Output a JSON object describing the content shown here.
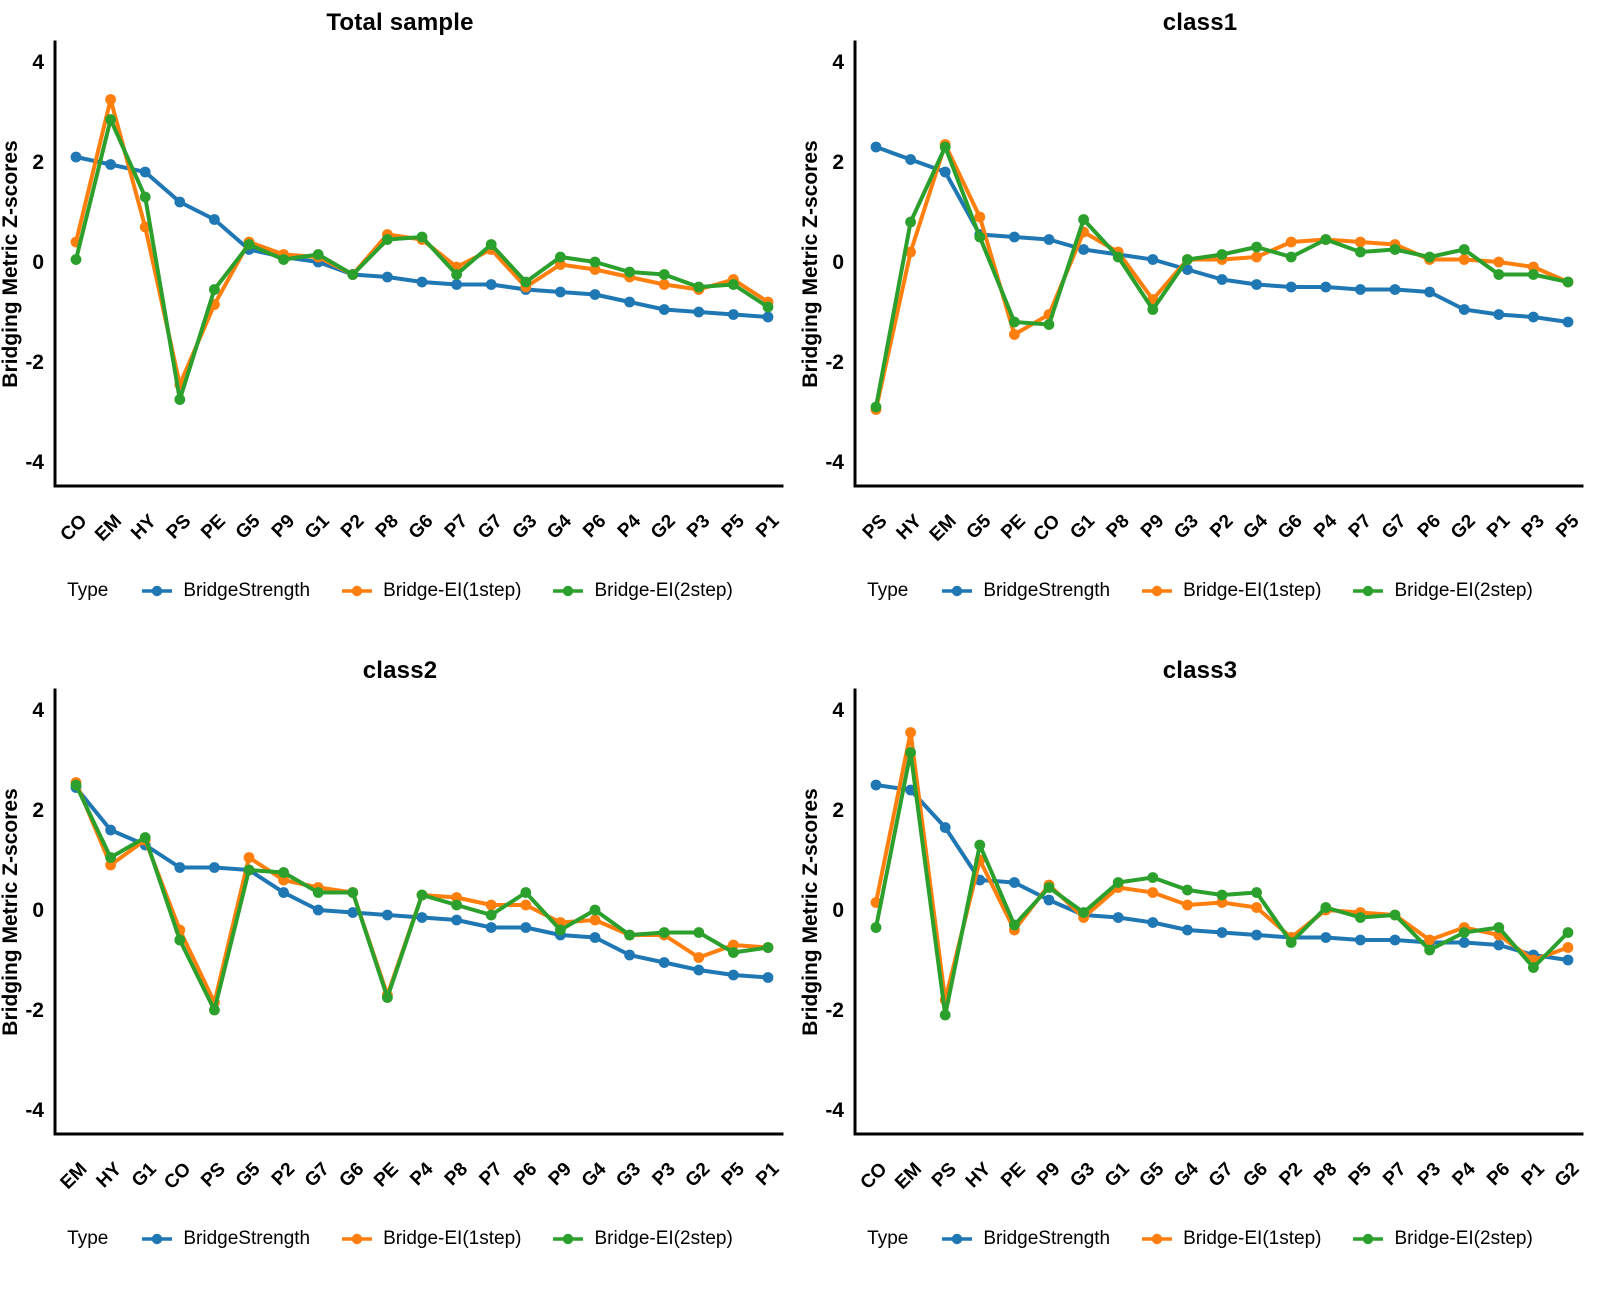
{
  "figure": {
    "ylabel": "Bridging Metric Z-scores",
    "legend_title": "Type",
    "colors": {
      "blue": "#1f77b4",
      "orange": "#ff7f0e",
      "green": "#2ca02c",
      "axis": "#000000"
    }
  },
  "chart_data": [
    {
      "type": "line",
      "title": "Total sample",
      "xlabel": "",
      "ylabel": "Bridging Metric Z-scores",
      "yticks": [
        4,
        2,
        0,
        -2,
        -4
      ],
      "ylim": [
        -4.5,
        4.5
      ],
      "grid": false,
      "legend_title": "Type",
      "legend_position": "bottom",
      "categories": [
        "CO",
        "EM",
        "HY",
        "PS",
        "PE",
        "G5",
        "P9",
        "G1",
        "P2",
        "P8",
        "G6",
        "P7",
        "G7",
        "G3",
        "G4",
        "P6",
        "P4",
        "G2",
        "P3",
        "P5",
        "P1"
      ],
      "series": [
        {
          "name": "BridgeStrength",
          "color": "#1f77b4",
          "values": [
            2.1,
            1.95,
            1.8,
            1.2,
            0.85,
            0.25,
            0.1,
            0.0,
            -0.25,
            -0.3,
            -0.4,
            -0.45,
            -0.45,
            -0.55,
            -0.6,
            -0.65,
            -0.8,
            -0.95,
            -1.0,
            -1.05,
            -1.1
          ]
        },
        {
          "name": "Bridge-EI(1step)",
          "color": "#ff7f0e",
          "values": [
            0.4,
            3.25,
            0.7,
            -2.45,
            -0.85,
            0.4,
            0.15,
            0.1,
            -0.25,
            0.55,
            0.45,
            -0.1,
            0.25,
            -0.5,
            -0.05,
            -0.15,
            -0.3,
            -0.45,
            -0.55,
            -0.35,
            -0.8
          ]
        },
        {
          "name": "Bridge-EI(2step)",
          "color": "#2ca02c",
          "values": [
            0.05,
            2.85,
            1.3,
            -2.75,
            -0.55,
            0.35,
            0.05,
            0.15,
            -0.25,
            0.45,
            0.5,
            -0.25,
            0.35,
            -0.4,
            0.1,
            0.0,
            -0.2,
            -0.25,
            -0.5,
            -0.45,
            -0.9
          ]
        }
      ]
    },
    {
      "type": "line",
      "title": "class1",
      "xlabel": "",
      "ylabel": "Bridging Metric Z-scores",
      "yticks": [
        4,
        2,
        0,
        -2,
        -4
      ],
      "ylim": [
        -4.5,
        4.5
      ],
      "grid": false,
      "legend_title": "Type",
      "legend_position": "bottom",
      "categories": [
        "PS",
        "HY",
        "EM",
        "G5",
        "PE",
        "CO",
        "G1",
        "P8",
        "P9",
        "G3",
        "P2",
        "G4",
        "G6",
        "P4",
        "P7",
        "G7",
        "P6",
        "G2",
        "P1",
        "P3",
        "P5"
      ],
      "series": [
        {
          "name": "BridgeStrength",
          "color": "#1f77b4",
          "values": [
            2.3,
            2.05,
            1.8,
            0.55,
            0.5,
            0.45,
            0.25,
            0.15,
            0.05,
            -0.15,
            -0.35,
            -0.45,
            -0.5,
            -0.5,
            -0.55,
            -0.55,
            -0.6,
            -0.95,
            -1.05,
            -1.1,
            -1.2
          ]
        },
        {
          "name": "Bridge-EI(1step)",
          "color": "#ff7f0e",
          "values": [
            -2.95,
            0.2,
            2.35,
            0.9,
            -1.45,
            -1.05,
            0.6,
            0.2,
            -0.75,
            0.05,
            0.05,
            0.1,
            0.4,
            0.45,
            0.4,
            0.35,
            0.05,
            0.05,
            0.0,
            -0.1,
            -0.4
          ]
        },
        {
          "name": "Bridge-EI(2step)",
          "color": "#2ca02c",
          "values": [
            -2.9,
            0.8,
            2.3,
            0.5,
            -1.2,
            -1.25,
            0.85,
            0.1,
            -0.95,
            0.05,
            0.15,
            0.3,
            0.1,
            0.45,
            0.2,
            0.25,
            0.1,
            0.25,
            -0.25,
            -0.25,
            -0.4
          ]
        }
      ]
    },
    {
      "type": "line",
      "title": "class2",
      "xlabel": "",
      "ylabel": "Bridging Metric Z-scores",
      "yticks": [
        4,
        2,
        0,
        -2,
        -4
      ],
      "ylim": [
        -4.5,
        4.5
      ],
      "grid": false,
      "legend_title": "Type",
      "legend_position": "bottom",
      "categories": [
        "EM",
        "HY",
        "G1",
        "CO",
        "PS",
        "G5",
        "P2",
        "G7",
        "G6",
        "PE",
        "P4",
        "P8",
        "P7",
        "P6",
        "P9",
        "G4",
        "G3",
        "P3",
        "G2",
        "P5",
        "P1"
      ],
      "series": [
        {
          "name": "BridgeStrength",
          "color": "#1f77b4",
          "values": [
            2.45,
            1.6,
            1.3,
            0.85,
            0.85,
            0.8,
            0.35,
            0.0,
            -0.05,
            -0.1,
            -0.15,
            -0.2,
            -0.35,
            -0.35,
            -0.5,
            -0.55,
            -0.9,
            -1.05,
            -1.2,
            -1.3,
            -1.35
          ]
        },
        {
          "name": "Bridge-EI(1step)",
          "color": "#ff7f0e",
          "values": [
            2.55,
            0.9,
            1.4,
            -0.4,
            -1.85,
            1.05,
            0.6,
            0.45,
            0.35,
            -1.7,
            0.3,
            0.25,
            0.1,
            0.1,
            -0.25,
            -0.2,
            -0.5,
            -0.5,
            -0.95,
            -0.7,
            -0.75
          ]
        },
        {
          "name": "Bridge-EI(2step)",
          "color": "#2ca02c",
          "values": [
            2.5,
            1.05,
            1.45,
            -0.6,
            -2.0,
            0.8,
            0.75,
            0.35,
            0.35,
            -1.75,
            0.3,
            0.1,
            -0.1,
            0.35,
            -0.4,
            0.0,
            -0.5,
            -0.45,
            -0.45,
            -0.85,
            -0.75
          ]
        }
      ]
    },
    {
      "type": "line",
      "title": "class3",
      "xlabel": "",
      "ylabel": "Bridging Metric Z-scores",
      "yticks": [
        4,
        2,
        0,
        -2,
        -4
      ],
      "ylim": [
        -4.5,
        4.5
      ],
      "grid": false,
      "legend_title": "Type",
      "legend_position": "bottom",
      "categories": [
        "CO",
        "EM",
        "PS",
        "HY",
        "PE",
        "P9",
        "G3",
        "G1",
        "G5",
        "G4",
        "G7",
        "G6",
        "P2",
        "P8",
        "P5",
        "P7",
        "P3",
        "P4",
        "P6",
        "P1",
        "G2"
      ],
      "series": [
        {
          "name": "BridgeStrength",
          "color": "#1f77b4",
          "values": [
            2.5,
            2.4,
            1.65,
            0.6,
            0.55,
            0.2,
            -0.1,
            -0.15,
            -0.25,
            -0.4,
            -0.45,
            -0.5,
            -0.55,
            -0.55,
            -0.6,
            -0.6,
            -0.65,
            -0.65,
            -0.7,
            -0.9,
            -1.0
          ]
        },
        {
          "name": "Bridge-EI(1step)",
          "color": "#ff7f0e",
          "values": [
            0.15,
            3.55,
            -1.8,
            1.0,
            -0.4,
            0.5,
            -0.15,
            0.45,
            0.35,
            0.1,
            0.15,
            0.05,
            -0.55,
            0.0,
            -0.05,
            -0.1,
            -0.6,
            -0.35,
            -0.5,
            -1.0,
            -0.75
          ]
        },
        {
          "name": "Bridge-EI(2step)",
          "color": "#2ca02c",
          "values": [
            -0.35,
            3.15,
            -2.1,
            1.3,
            -0.3,
            0.45,
            -0.05,
            0.55,
            0.65,
            0.4,
            0.3,
            0.35,
            -0.65,
            0.05,
            -0.15,
            -0.1,
            -0.8,
            -0.45,
            -0.35,
            -1.15,
            -0.45
          ]
        }
      ]
    }
  ]
}
